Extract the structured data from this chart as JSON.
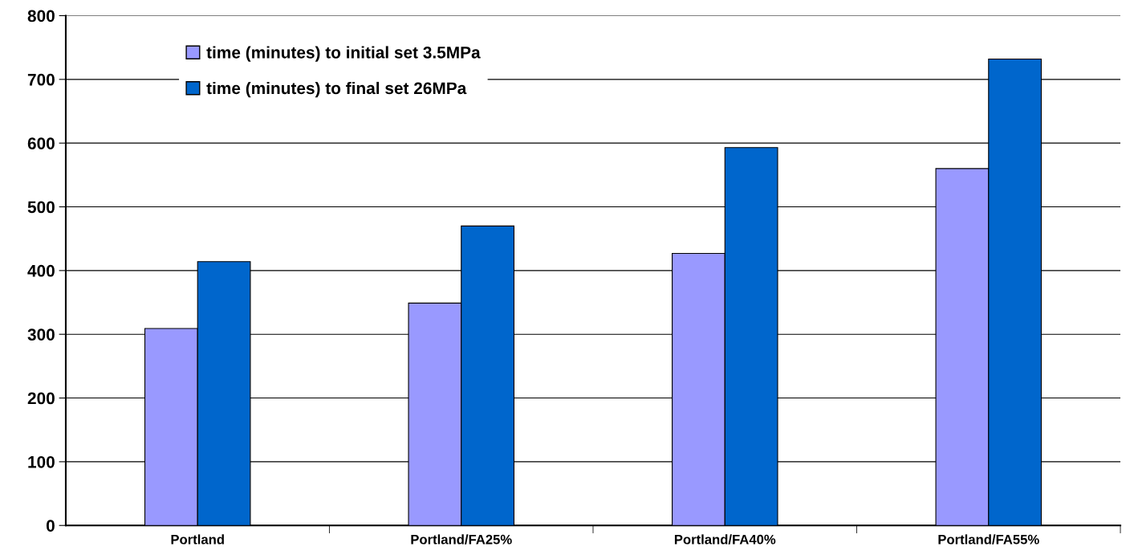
{
  "chart_data": {
    "type": "bar",
    "categories": [
      "Portland",
      "Portland/FA25%",
      "Portland/FA40%",
      "Portland/FA55%"
    ],
    "series": [
      {
        "name": "time (minutes) to initial set 3.5MPa",
        "color": "#9999ff",
        "values": [
          309,
          349,
          427,
          560
        ]
      },
      {
        "name": "time (minutes) to final set 26MPa",
        "color": "#0066cc",
        "values": [
          414,
          470,
          593,
          732
        ]
      }
    ],
    "ylim": [
      0,
      800
    ],
    "yticks": [
      0,
      100,
      200,
      300,
      400,
      500,
      600,
      700,
      800
    ],
    "grid": "y",
    "legend": "top left"
  }
}
